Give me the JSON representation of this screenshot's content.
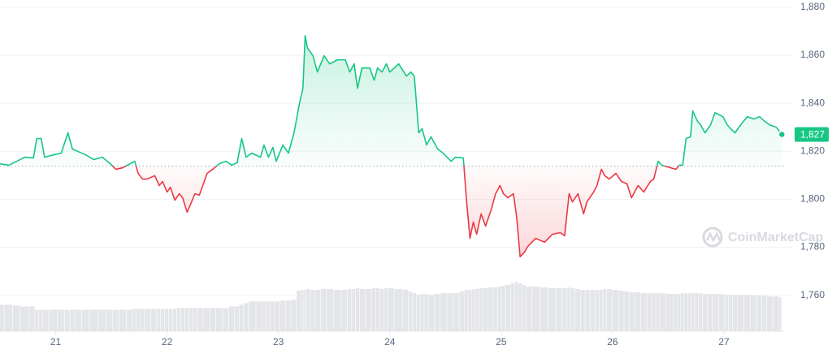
{
  "chart_data": {
    "type": "line",
    "x": [
      20.5,
      20.58,
      20.65,
      20.72,
      20.8,
      20.83,
      20.87,
      20.9,
      20.98,
      21.05,
      21.11,
      21.15,
      21.2,
      21.27,
      21.34,
      21.42,
      21.49,
      21.54,
      21.6,
      21.67,
      21.71,
      21.74,
      21.78,
      21.82,
      21.89,
      21.93,
      21.96,
      22.0,
      22.03,
      22.07,
      22.11,
      22.14,
      22.18,
      22.22,
      22.25,
      22.29,
      22.36,
      22.41,
      22.47,
      22.53,
      22.58,
      22.63,
      22.67,
      22.71,
      22.76,
      22.84,
      22.87,
      22.91,
      22.95,
      22.98,
      23.04,
      23.09,
      23.14,
      23.19,
      23.22,
      23.24,
      23.26,
      23.31,
      23.35,
      23.41,
      23.46,
      23.53,
      23.6,
      23.64,
      23.68,
      23.71,
      23.75,
      23.82,
      23.86,
      23.89,
      23.93,
      23.97,
      24.0,
      24.08,
      24.15,
      24.19,
      24.22,
      24.26,
      24.29,
      24.33,
      24.37,
      24.43,
      24.48,
      24.55,
      24.59,
      24.66,
      24.69,
      24.72,
      24.75,
      24.78,
      24.82,
      24.86,
      24.91,
      24.95,
      24.99,
      25.02,
      25.06,
      25.11,
      25.14,
      25.17,
      25.21,
      25.24,
      25.31,
      25.39,
      25.46,
      25.53,
      25.57,
      25.61,
      25.64,
      25.69,
      25.74,
      25.77,
      25.83,
      25.86,
      25.9,
      25.93,
      25.97,
      26.03,
      26.08,
      26.13,
      26.17,
      26.23,
      26.28,
      26.34,
      26.37,
      26.41,
      26.44,
      26.52,
      26.57,
      26.6,
      26.63,
      26.66,
      26.7,
      26.72,
      26.76,
      26.79,
      26.83,
      26.88,
      26.92,
      26.99,
      27.03,
      27.06,
      27.1,
      27.15,
      27.21,
      27.27,
      27.32,
      27.36,
      27.41,
      27.47,
      27.52
    ],
    "values": [
      1814.8,
      1814.2,
      1815.8,
      1817.5,
      1817.2,
      1825.3,
      1825.3,
      1817.5,
      1818.5,
      1819.2,
      1827.7,
      1820.9,
      1819.9,
      1818.5,
      1816.5,
      1817.5,
      1814.8,
      1812.5,
      1813.1,
      1814.8,
      1815.8,
      1810.8,
      1808.4,
      1808.4,
      1809.8,
      1805.7,
      1807.4,
      1803.0,
      1805.0,
      1799.6,
      1802.3,
      1800.6,
      1794.6,
      1798.9,
      1802.3,
      1801.7,
      1810.8,
      1812.5,
      1814.8,
      1815.8,
      1814.2,
      1815.2,
      1825.3,
      1817.5,
      1819.2,
      1817.5,
      1822.6,
      1817.5,
      1821.6,
      1815.8,
      1822.6,
      1819.2,
      1827.7,
      1840.2,
      1846.2,
      1868.2,
      1863.1,
      1859.8,
      1853.0,
      1859.8,
      1856.4,
      1858.1,
      1858.1,
      1853.0,
      1856.4,
      1846.2,
      1854.7,
      1854.7,
      1849.6,
      1854.7,
      1853.0,
      1856.4,
      1853.0,
      1856.4,
      1851.3,
      1853.0,
      1851.3,
      1827.7,
      1829.4,
      1822.6,
      1826.0,
      1820.9,
      1819.2,
      1815.8,
      1817.5,
      1817.2,
      1798.9,
      1783.7,
      1790.5,
      1785.4,
      1793.9,
      1788.8,
      1795.6,
      1802.3,
      1805.7,
      1802.3,
      1800.6,
      1802.3,
      1792.2,
      1776.0,
      1778.0,
      1780.4,
      1783.7,
      1782.1,
      1785.4,
      1786.1,
      1784.8,
      1802.3,
      1798.9,
      1802.3,
      1793.9,
      1798.9,
      1803.0,
      1805.7,
      1812.5,
      1809.8,
      1808.4,
      1810.8,
      1807.4,
      1806.4,
      1800.6,
      1805.7,
      1803.0,
      1807.4,
      1808.4,
      1815.8,
      1814.2,
      1813.1,
      1812.5,
      1814.2,
      1814.2,
      1825.3,
      1826.0,
      1836.8,
      1832.7,
      1831.0,
      1827.7,
      1831.0,
      1836.1,
      1834.4,
      1831.0,
      1829.4,
      1827.7,
      1831.0,
      1834.4,
      1833.4,
      1834.4,
      1832.7,
      1831.0,
      1830.0,
      1827.0
    ],
    "baseline": 1813.8,
    "colors": {
      "up": "#16c784",
      "down": "#ea3943"
    },
    "current_price": {
      "value": 1827,
      "label": "1,827"
    },
    "volume": {
      "color": "#e3e5e9",
      "ylim": [
        0,
        400
      ],
      "values": [
        32,
        32,
        31,
        30,
        30,
        26,
        26,
        26,
        26,
        26,
        26,
        26,
        26,
        26,
        26,
        26,
        26,
        26,
        26,
        26,
        27,
        27,
        27,
        27,
        27,
        27,
        27,
        27,
        27,
        27,
        28,
        28,
        28,
        28,
        28,
        28,
        28,
        28,
        28,
        28,
        30,
        30,
        32,
        34,
        36,
        36,
        36,
        36,
        36,
        36,
        37,
        37,
        38,
        49,
        50,
        50,
        51,
        50,
        50,
        51,
        51,
        50,
        50,
        51,
        51,
        52,
        51,
        51,
        52,
        52,
        51,
        52,
        52,
        51,
        50,
        48,
        46,
        44,
        45,
        45,
        44,
        45,
        46,
        46,
        46,
        48,
        50,
        50,
        51,
        51,
        52,
        52,
        53,
        53,
        54,
        55,
        56,
        58,
        60,
        58,
        56,
        54,
        54,
        53,
        52,
        52,
        52,
        53,
        52,
        51,
        50,
        50,
        50,
        50,
        50,
        51,
        51,
        50,
        49,
        48,
        47,
        47,
        46,
        46,
        46,
        46,
        46,
        45,
        45,
        45,
        46,
        46,
        46,
        46,
        46,
        46,
        45,
        45,
        45,
        45,
        44,
        44,
        44,
        44,
        44,
        43,
        43,
        43,
        42,
        42,
        41
      ]
    },
    "xlim": [
      20.5,
      27.54
    ],
    "ylim": [
      1745,
      1883
    ],
    "xticks": [
      21,
      22,
      23,
      24,
      25,
      26,
      27
    ],
    "yticks": [
      {
        "value": 1760,
        "label": "1,760"
      },
      {
        "value": 1780,
        "label": "1,780"
      },
      {
        "value": 1800,
        "label": "1,800"
      },
      {
        "value": 1820,
        "label": "1,820"
      },
      {
        "value": 1840,
        "label": "1,840"
      },
      {
        "value": 1860,
        "label": "1,860"
      },
      {
        "value": 1880,
        "label": "1,880"
      }
    ],
    "grid": true,
    "watermark": "CoinMarketCap"
  }
}
